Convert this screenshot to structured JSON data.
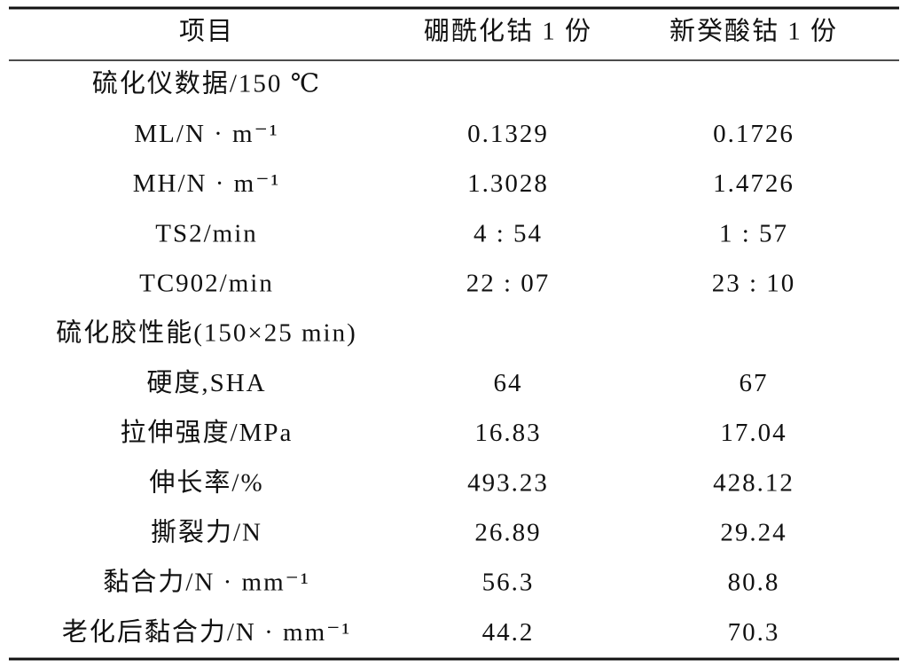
{
  "table": {
    "header": [
      "项目",
      "硼酰化钴 1 份",
      "新癸酸钴 1 份"
    ],
    "rows": [
      [
        "硫化仪数据/150 ℃"
      ],
      [
        "ML/N · m⁻¹",
        "0.1329",
        "0.1726"
      ],
      [
        "MH/N · m⁻¹",
        "1.3028",
        "1.4726"
      ],
      [
        "TS2/min",
        "4 : 54",
        "1 : 57"
      ],
      [
        "TC902/min",
        "22 : 07",
        "23 : 10"
      ],
      [
        "硫化胶性能(150×25 min)"
      ],
      [
        "硬度,SHA",
        "64",
        "67"
      ],
      [
        "拉伸强度/MPa",
        "16.83",
        "17.04"
      ],
      [
        "伸长率/%",
        "493.23",
        "428.12"
      ],
      [
        "撕裂力/N",
        "26.89",
        "29.24"
      ],
      [
        "黏合力/N · mm⁻¹",
        "56.3",
        "80.8"
      ],
      [
        "老化后黏合力/N · mm⁻¹",
        "44.2",
        "70.3"
      ]
    ]
  }
}
